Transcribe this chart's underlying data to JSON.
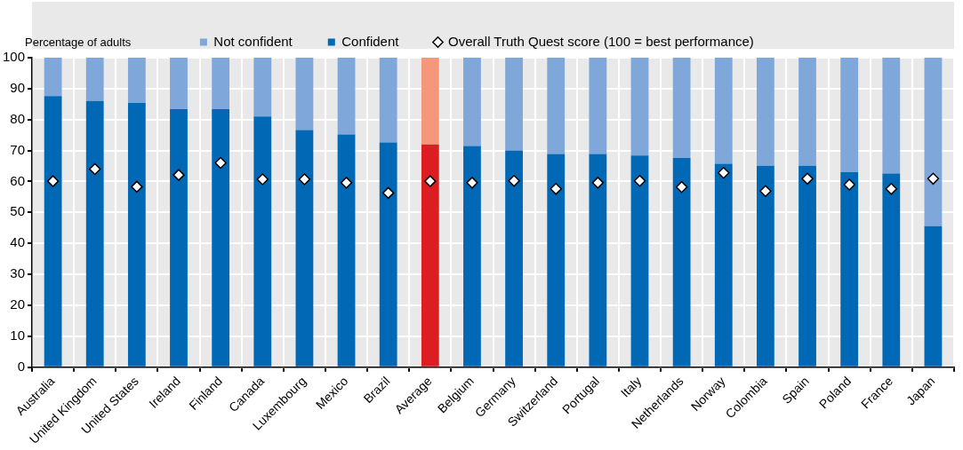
{
  "chart_data": {
    "type": "bar",
    "stacked": true,
    "ylabel": "Percentage of adults",
    "categories": [
      "Australia",
      "United Kingdom",
      "United States",
      "Ireland",
      "Finland",
      "Canada",
      "Luxembourg",
      "Mexico",
      "Brazil",
      "Average",
      "Belgium",
      "Germany",
      "Switzerland",
      "Portugal",
      "Italy",
      "Netherlands",
      "Norway",
      "Colombia",
      "Spain",
      "Poland",
      "France",
      "Japan"
    ],
    "series": [
      {
        "name": "Confident",
        "color": "#0068b5",
        "colors": [
          "#0068b5",
          "#0068b5",
          "#0068b5",
          "#0068b5",
          "#0068b5",
          "#0068b5",
          "#0068b5",
          "#0068b5",
          "#0068b5",
          "#dc1e23",
          "#0068b5",
          "#0068b5",
          "#0068b5",
          "#0068b5",
          "#0068b5",
          "#0068b5",
          "#0068b5",
          "#0068b5",
          "#0068b5",
          "#0068b5",
          "#0068b5",
          "#0068b5"
        ],
        "values": [
          87.6,
          86,
          85.4,
          83.4,
          83.4,
          81,
          76.6,
          75.2,
          72.6,
          72,
          71.5,
          70,
          68.9,
          68.9,
          68.4,
          67.6,
          65.7,
          65.1,
          65.1,
          63,
          62.6,
          45.6
        ]
      },
      {
        "name": "Not confident",
        "color": "#7fa7d9",
        "colors": [
          "#7fa7d9",
          "#7fa7d9",
          "#7fa7d9",
          "#7fa7d9",
          "#7fa7d9",
          "#7fa7d9",
          "#7fa7d9",
          "#7fa7d9",
          "#7fa7d9",
          "#f4977a",
          "#7fa7d9",
          "#7fa7d9",
          "#7fa7d9",
          "#7fa7d9",
          "#7fa7d9",
          "#7fa7d9",
          "#7fa7d9",
          "#7fa7d9",
          "#7fa7d9",
          "#7fa7d9",
          "#7fa7d9",
          "#7fa7d9"
        ],
        "values": [
          12.4,
          14,
          14.6,
          16.6,
          16.6,
          19,
          23.4,
          24.8,
          27.4,
          28,
          28.5,
          30,
          31.1,
          31.1,
          31.6,
          32.4,
          34.3,
          34.9,
          34.9,
          37,
          37.4,
          54.4
        ]
      },
      {
        "name": "Overall Truth Quest score (100 = best performance)",
        "type": "scatter",
        "marker": "diamond",
        "color": "#ffffff",
        "x": [
          "Australia",
          "United Kingdom",
          "United States",
          "Ireland",
          "Finland",
          "Canada",
          "Luxembourg",
          "Mexico",
          "Brazil",
          "Average",
          "Belgium",
          "Germany",
          "Switzerland",
          "Portugal",
          "Italy",
          "Netherlands",
          "Norway",
          "Colombia",
          "Spain",
          "Poland",
          "France",
          "Japan"
        ],
        "values": [
          60.1,
          64,
          58.3,
          62.1,
          66,
          60.7,
          60.7,
          59.6,
          56.3,
          60.1,
          59.6,
          60.2,
          57.6,
          59.6,
          60.2,
          58.2,
          62.8,
          56.9,
          60.9,
          59,
          57.6,
          60.9
        ]
      }
    ],
    "ylim": [
      0,
      100
    ],
    "yticks": [
      0,
      10,
      20,
      30,
      40,
      50,
      60,
      70,
      80,
      90,
      100
    ],
    "grid": true,
    "legend": "top"
  }
}
